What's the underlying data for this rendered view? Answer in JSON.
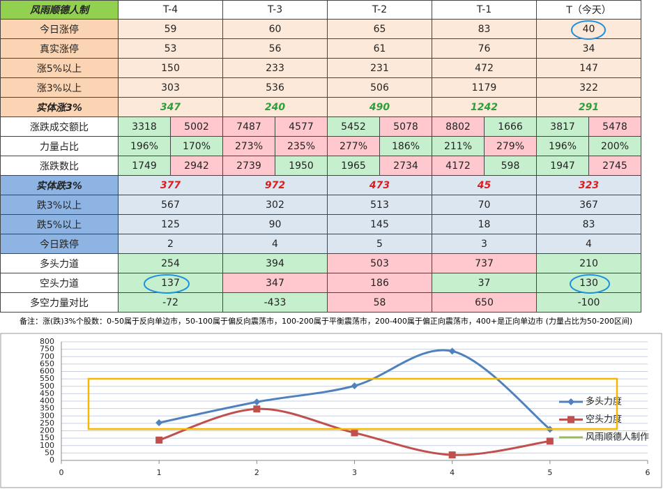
{
  "table": {
    "header": {
      "corner": "风雨顺德人制",
      "columns": [
        "T-4",
        "T-3",
        "T-2",
        "T-1",
        "T（今天）"
      ]
    },
    "rows": [
      {
        "label": "今日涨停",
        "label_color": "#fbd4b4",
        "values": [
          59,
          60,
          65,
          83,
          40
        ],
        "colors": [
          "#fde9d9",
          "#fde9d9",
          "#fde9d9",
          "#fde9d9",
          "#fde9d9"
        ]
      },
      {
        "label": "真实涨停",
        "label_color": "#fbd4b4",
        "values": [
          53,
          56,
          61,
          76,
          34
        ],
        "colors": [
          "#fde9d9",
          "#fde9d9",
          "#fde9d9",
          "#fde9d9",
          "#fde9d9"
        ]
      },
      {
        "label": "涨5%以上",
        "label_color": "#fbd4b4",
        "values": [
          150,
          233,
          231,
          472,
          147
        ],
        "colors": [
          "#fde9d9",
          "#fde9d9",
          "#fde9d9",
          "#fde9d9",
          "#fde9d9"
        ]
      },
      {
        "label": "涨3%以上",
        "label_color": "#fbd4b4",
        "values": [
          303,
          536,
          506,
          1179,
          322
        ],
        "colors": [
          "#fde9d9",
          "#fde9d9",
          "#fde9d9",
          "#fde9d9",
          "#fde9d9"
        ]
      },
      {
        "label": "实体涨3%",
        "label_color": "#fbd4b4",
        "values": [
          347,
          240,
          490,
          1242,
          291
        ],
        "colors": [
          "#fde9d9",
          "#fde9d9",
          "#fde9d9",
          "#fde9d9",
          "#fde9d9"
        ]
      },
      {
        "label": "涨跌成交额比",
        "label_color": "#ffffff",
        "values": [
          3318,
          5002,
          7487,
          4577,
          5452,
          5078,
          8802,
          1666,
          3817,
          5478
        ],
        "colors": [
          "#c6efce",
          "#ffc7ce",
          "#ffc7ce",
          "#ffc7ce",
          "#c6efce",
          "#ffc7ce",
          "#ffc7ce",
          "#c6efce",
          "#c6efce",
          "#ffc7ce"
        ]
      },
      {
        "label": "力量占比",
        "label_color": "#ffffff",
        "values": [
          "196%",
          "170%",
          "273%",
          "235%",
          "277%",
          "186%",
          "211%",
          "279%",
          "196%",
          "200%"
        ],
        "colors": [
          "#c6efce",
          "#c6efce",
          "#ffc7ce",
          "#ffc7ce",
          "#ffc7ce",
          "#c6efce",
          "#c6efce",
          "#ffc7ce",
          "#c6efce",
          "#c6efce"
        ]
      },
      {
        "label": "涨跌数比",
        "label_color": "#ffffff",
        "values": [
          1749,
          2942,
          2739,
          1950,
          1965,
          2734,
          4172,
          598,
          1947,
          2745
        ],
        "colors": [
          "#c6efce",
          "#ffc7ce",
          "#ffc7ce",
          "#c6efce",
          "#c6efce",
          "#ffc7ce",
          "#ffc7ce",
          "#c6efce",
          "#c6efce",
          "#ffc7ce"
        ]
      },
      {
        "label": "实体跌3%",
        "label_color": "#8db4e2",
        "values": [
          377,
          972,
          473,
          45,
          323
        ],
        "colors": [
          "#dce6f1",
          "#dce6f1",
          "#dce6f1",
          "#dce6f1",
          "#dce6f1"
        ]
      },
      {
        "label": "跌3%以上",
        "label_color": "#8db4e2",
        "values": [
          567,
          302,
          513,
          70,
          367
        ],
        "colors": [
          "#dce6f1",
          "#dce6f1",
          "#dce6f1",
          "#dce6f1",
          "#dce6f1"
        ]
      },
      {
        "label": "跌5%以上",
        "label_color": "#8db4e2",
        "values": [
          125,
          90,
          145,
          18,
          83
        ],
        "colors": [
          "#dce6f1",
          "#dce6f1",
          "#dce6f1",
          "#dce6f1",
          "#dce6f1"
        ]
      },
      {
        "label": "今日跌停",
        "label_color": "#8db4e2",
        "values": [
          2,
          4,
          5,
          3,
          4
        ],
        "colors": [
          "#dce6f1",
          "#dce6f1",
          "#dce6f1",
          "#dce6f1",
          "#dce6f1"
        ]
      },
      {
        "label": "多头力道",
        "label_color": "#ffffff",
        "values": [
          254,
          394,
          503,
          737,
          210
        ],
        "colors": [
          "#c6efce",
          "#c6efce",
          "#ffc7ce",
          "#ffc7ce",
          "#c6efce"
        ]
      },
      {
        "label": "空头力道",
        "label_color": "#ffffff",
        "values": [
          137,
          347,
          186,
          37,
          130
        ],
        "colors": [
          "#c6efce",
          "#ffc7ce",
          "#ffc7ce",
          "#c6efce",
          "#c6efce"
        ]
      },
      {
        "label": "多空力量对比",
        "label_color": "#ffffff",
        "values": [
          -72,
          -433,
          58,
          650,
          -100
        ],
        "colors": [
          "#c6efce",
          "#c6efce",
          "#ffc7ce",
          "#ffc7ce",
          "#c6efce"
        ]
      }
    ],
    "note": "备注：涨(跌)3%个股数：0-50属于反向单边市，50-100属于偏反向震荡市，100-200属于平衡震荡市，200-400属于偏正向震荡市，400+是正向单边市 (力量占比为50-200区间)"
  },
  "chart_data": {
    "type": "line",
    "x": [
      1,
      2,
      3,
      4,
      5
    ],
    "series": [
      {
        "name": "多头力度",
        "color": "#4f81bd",
        "values": [
          254,
          394,
          503,
          737,
          210
        ]
      },
      {
        "name": "空头力度",
        "color": "#c0504d",
        "values": [
          137,
          347,
          186,
          37,
          130
        ]
      },
      {
        "name": "风雨顺德人制作",
        "color": "#9bbb59",
        "values": [
          null,
          null,
          null,
          null,
          null
        ]
      }
    ],
    "xlim": [
      0,
      6
    ],
    "xticks": [
      0,
      1,
      2,
      3,
      4,
      5,
      6
    ],
    "ylim": [
      0,
      800
    ],
    "yticks": [
      0,
      50,
      100,
      150,
      200,
      250,
      300,
      350,
      400,
      450,
      500,
      550,
      600,
      650,
      700,
      750,
      800
    ],
    "grid": true
  }
}
